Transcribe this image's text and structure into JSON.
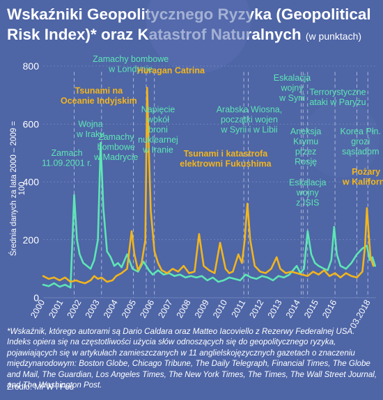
{
  "title": {
    "main": "Wskaźniki Geopolitycznego Ryzyka (Geopolitical Risk Index)* oraz Katastrof Naturalnych",
    "sub": "(w punktach)"
  },
  "ylabel": "Średnia danych za lata 2000 – 2009 = 100",
  "footnote": "*Wskaźnik, którego autorami są Dario Caldara oraz Matteo Iacoviello z Rezerwy Federalnej USA. Indeks opiera się na częstotliwości użycia słów odnoszących się do geopolitycznego ryzyka, pojawiających się w artykułach zamieszczanych w 11 anglielskojęzycznych gazetach o znaczeniu międzynarodowym: Boston Globe, Chicago Tribune, The Daily Telegraph, Financial Times, The Globe and Mail, The Guardian, Los Angeles Times, The New York Times, The Times, The Wall Street Journal, and The Washington Post.",
  "source": "Źródło: MFW i Fed",
  "colors": {
    "background": "#4e65a6",
    "geopolitical": "#5ee6b4",
    "natural": "#f2b51c",
    "grid": "#8fa1cf"
  },
  "chart_data": {
    "type": "line",
    "ylim": [
      0,
      800
    ],
    "yticks": [
      0,
      200,
      400,
      600,
      800
    ],
    "xlim": [
      2000,
      2018.25
    ],
    "xticks": [
      "2000",
      "2001",
      "2002",
      "2003",
      "2004",
      "2005",
      "2006",
      "2007",
      "2008",
      "2009",
      "2010",
      "2011",
      "2012",
      "2013",
      "2014",
      "2015",
      "2016",
      "03.2018"
    ],
    "series": [
      {
        "key": "geopolitical",
        "points": [
          [
            2000,
            45
          ],
          [
            2000.3,
            40
          ],
          [
            2000.6,
            50
          ],
          [
            2000.9,
            38
          ],
          [
            2001.2,
            45
          ],
          [
            2001.5,
            35
          ],
          [
            2001.7,
            355
          ],
          [
            2001.85,
            200
          ],
          [
            2002.0,
            150
          ],
          [
            2002.2,
            120
          ],
          [
            2002.4,
            110
          ],
          [
            2002.6,
            100
          ],
          [
            2002.8,
            130
          ],
          [
            2003.0,
            200
          ],
          [
            2003.15,
            535
          ],
          [
            2003.3,
            310
          ],
          [
            2003.5,
            160
          ],
          [
            2003.7,
            140
          ],
          [
            2003.9,
            110
          ],
          [
            2004.1,
            120
          ],
          [
            2004.3,
            105
          ],
          [
            2004.6,
            150
          ],
          [
            2004.9,
            100
          ],
          [
            2005.2,
            90
          ],
          [
            2005.5,
            125
          ],
          [
            2005.8,
            95
          ],
          [
            2006.0,
            80
          ],
          [
            2006.3,
            95
          ],
          [
            2006.6,
            80
          ],
          [
            2006.9,
            85
          ],
          [
            2007.2,
            75
          ],
          [
            2007.5,
            80
          ],
          [
            2007.8,
            70
          ],
          [
            2008.1,
            75
          ],
          [
            2008.4,
            70
          ],
          [
            2008.7,
            75
          ],
          [
            2009.0,
            60
          ],
          [
            2009.3,
            70
          ],
          [
            2009.6,
            55
          ],
          [
            2009.9,
            60
          ],
          [
            2010.2,
            70
          ],
          [
            2010.5,
            65
          ],
          [
            2010.8,
            60
          ],
          [
            2011.1,
            80
          ],
          [
            2011.4,
            70
          ],
          [
            2011.7,
            65
          ],
          [
            2012.0,
            75
          ],
          [
            2012.3,
            70
          ],
          [
            2012.6,
            60
          ],
          [
            2012.9,
            75
          ],
          [
            2013.2,
            70
          ],
          [
            2013.5,
            80
          ],
          [
            2013.7,
            95
          ],
          [
            2013.9,
            110
          ],
          [
            2014.1,
            85
          ],
          [
            2014.3,
            100
          ],
          [
            2014.5,
            230
          ],
          [
            2014.7,
            150
          ],
          [
            2014.9,
            120
          ],
          [
            2015.1,
            110
          ],
          [
            2015.4,
            100
          ],
          [
            2015.6,
            95
          ],
          [
            2015.8,
            130
          ],
          [
            2015.95,
            245
          ],
          [
            2016.1,
            150
          ],
          [
            2016.3,
            110
          ],
          [
            2016.6,
            100
          ],
          [
            2016.9,
            120
          ],
          [
            2017.2,
            150
          ],
          [
            2017.5,
            170
          ],
          [
            2017.75,
            180
          ],
          [
            2017.9,
            130
          ],
          [
            2018.05,
            140
          ],
          [
            2018.2,
            110
          ]
        ]
      },
      {
        "key": "natural",
        "points": [
          [
            2000,
            75
          ],
          [
            2000.3,
            65
          ],
          [
            2000.6,
            70
          ],
          [
            2000.9,
            60
          ],
          [
            2001.2,
            70
          ],
          [
            2001.5,
            55
          ],
          [
            2001.8,
            60
          ],
          [
            2002.0,
            55
          ],
          [
            2002.3,
            50
          ],
          [
            2002.6,
            60
          ],
          [
            2002.8,
            75
          ],
          [
            2003.0,
            65
          ],
          [
            2003.2,
            70
          ],
          [
            2003.5,
            55
          ],
          [
            2003.8,
            60
          ],
          [
            2004.0,
            75
          ],
          [
            2004.3,
            85
          ],
          [
            2004.6,
            100
          ],
          [
            2004.85,
            230
          ],
          [
            2005.0,
            150
          ],
          [
            2005.2,
            95
          ],
          [
            2005.4,
            120
          ],
          [
            2005.6,
            200
          ],
          [
            2005.7,
            725
          ],
          [
            2005.8,
            500
          ],
          [
            2005.9,
            300
          ],
          [
            2006.1,
            160
          ],
          [
            2006.3,
            120
          ],
          [
            2006.5,
            95
          ],
          [
            2006.8,
            85
          ],
          [
            2007.1,
            100
          ],
          [
            2007.4,
            90
          ],
          [
            2007.7,
            110
          ],
          [
            2008.0,
            85
          ],
          [
            2008.3,
            90
          ],
          [
            2008.55,
            220
          ],
          [
            2008.8,
            110
          ],
          [
            2009.1,
            95
          ],
          [
            2009.4,
            85
          ],
          [
            2009.7,
            190
          ],
          [
            2010.0,
            100
          ],
          [
            2010.2,
            85
          ],
          [
            2010.4,
            90
          ],
          [
            2010.7,
            150
          ],
          [
            2010.9,
            120
          ],
          [
            2011.05,
            200
          ],
          [
            2011.2,
            325
          ],
          [
            2011.35,
            200
          ],
          [
            2011.6,
            110
          ],
          [
            2011.9,
            90
          ],
          [
            2012.2,
            85
          ],
          [
            2012.5,
            100
          ],
          [
            2012.8,
            140
          ],
          [
            2013.0,
            100
          ],
          [
            2013.3,
            85
          ],
          [
            2013.6,
            90
          ],
          [
            2013.9,
            85
          ],
          [
            2014.2,
            80
          ],
          [
            2014.5,
            75
          ],
          [
            2014.8,
            90
          ],
          [
            2015.1,
            80
          ],
          [
            2015.4,
            95
          ],
          [
            2015.7,
            75
          ],
          [
            2016.0,
            85
          ],
          [
            2016.3,
            70
          ],
          [
            2016.6,
            85
          ],
          [
            2016.9,
            75
          ],
          [
            2017.2,
            70
          ],
          [
            2017.5,
            90
          ],
          [
            2017.65,
            180
          ],
          [
            2017.75,
            310
          ],
          [
            2017.85,
            220
          ],
          [
            2017.95,
            140
          ],
          [
            2018.1,
            110
          ]
        ]
      }
    ],
    "event_lines": [
      2001.7,
      2003.2,
      2004.95,
      2005.65,
      2006.1,
      2011.0,
      2011.25,
      2014.15,
      2014.25,
      2014.5,
      2016.0,
      2017.2,
      2017.8
    ],
    "annotations": [
      {
        "lines": [
          "Zamachy bombowe",
          "w Londynie"
        ],
        "series": "geopolitical",
        "x": 2004.8,
        "y": 815
      },
      {
        "lines": [
          "Huragan Catrina"
        ],
        "series": "natural",
        "x": 2007.0,
        "y": 775
      },
      {
        "lines": [
          "Tsunami na",
          "Oceanie Indyjskim"
        ],
        "series": "natural",
        "x": 2003.05,
        "y": 705
      },
      {
        "lines": [
          "Wojna",
          "w Iraku"
        ],
        "series": "geopolitical",
        "x": 2002.6,
        "y": 590
      },
      {
        "lines": [
          "Zamach",
          "11.09.2001 r."
        ],
        "series": "geopolitical",
        "x": 2001.3,
        "y": 490
      },
      {
        "lines": [
          "Zamachy",
          "bombowe",
          "w Madrycie"
        ],
        "series": "geopolitical",
        "x": 2004.0,
        "y": 545
      },
      {
        "lines": [
          "Napięcie",
          "wokół",
          "broni",
          "nuklearnej",
          "w Iranie"
        ],
        "series": "geopolitical",
        "x": 2006.3,
        "y": 640
      },
      {
        "lines": [
          "Arabska Wiosna,",
          "początki wojen",
          "w Syrii i w Libii"
        ],
        "series": "geopolitical",
        "x": 2011.3,
        "y": 640
      },
      {
        "lines": [
          "Eskalacja",
          "wojny",
          "w Syrii"
        ],
        "series": "geopolitical",
        "x": 2013.65,
        "y": 750
      },
      {
        "lines": [
          "Terrorystyczne",
          "ataki w Paryżu"
        ],
        "series": "geopolitical",
        "x": 2016.15,
        "y": 700
      },
      {
        "lines": [
          "Aneksja",
          "Krymu",
          "przez",
          "Rosję"
        ],
        "series": "geopolitical",
        "x": 2014.4,
        "y": 565
      },
      {
        "lines": [
          "Korea Płn.",
          "grozi",
          "sąsiadom"
        ],
        "series": "geopolitical",
        "x": 2017.4,
        "y": 565
      },
      {
        "lines": [
          "Tsunami i katastrofa",
          "elektrowni Fukushima"
        ],
        "series": "natural",
        "x": 2010.0,
        "y": 488
      },
      {
        "lines": [
          "Eskalacja",
          "wojny",
          "z ISIS"
        ],
        "series": "geopolitical",
        "x": 2014.5,
        "y": 388
      },
      {
        "lines": [
          "Pożary",
          "w Kalifornii"
        ],
        "series": "natural",
        "x": 2017.7,
        "y": 425
      }
    ]
  }
}
